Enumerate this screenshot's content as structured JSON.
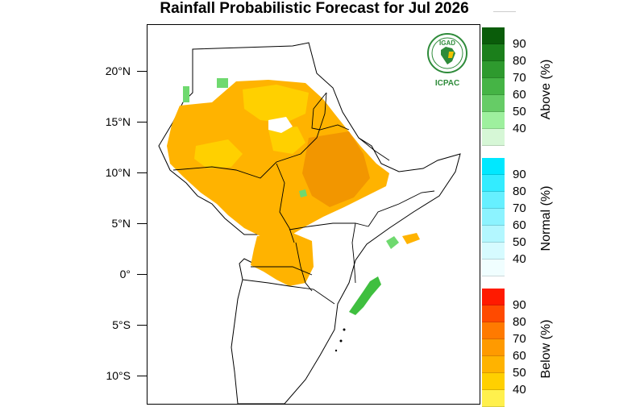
{
  "title": "Rainfall Probabilistic Forecast for Jul 2026",
  "lat_labels": [
    "20°N",
    "15°N",
    "10°N",
    "5°N",
    "0°",
    "5°S",
    "10°S"
  ],
  "logo": {
    "top_text": "IGAD",
    "bottom_text": "ICPAC",
    "color": "#2e8b3a"
  },
  "colorbars": [
    {
      "title": "Above (%)",
      "labels": [
        "90",
        "80",
        "70",
        "60",
        "50",
        "40"
      ],
      "colors": [
        "#0a5c0a",
        "#1b7f1b",
        "#2e9a2e",
        "#45b445",
        "#66cc66",
        "#9ef09e",
        "#d6f7d6"
      ]
    },
    {
      "title": "Normal (%)",
      "labels": [
        "90",
        "80",
        "70",
        "60",
        "50",
        "40"
      ],
      "colors": [
        "#00e8ff",
        "#33ecff",
        "#66f0ff",
        "#8cf3ff",
        "#b3f7ff",
        "#d6fbff",
        "#f0feff"
      ]
    },
    {
      "title": "Below (%)",
      "labels": [
        "90",
        "80",
        "70",
        "60",
        "50",
        "40"
      ],
      "colors": [
        "#ff1a00",
        "#ff4a00",
        "#ff7a00",
        "#ff9a00",
        "#ffb300",
        "#ffd000",
        "#fff04d"
      ]
    }
  ],
  "map_colors": {
    "below_40": "#ffd000",
    "below_50": "#ffb300",
    "below_60": "#f5a000",
    "above_40": "#6fd96f",
    "above_50": "#3fbf3f"
  }
}
